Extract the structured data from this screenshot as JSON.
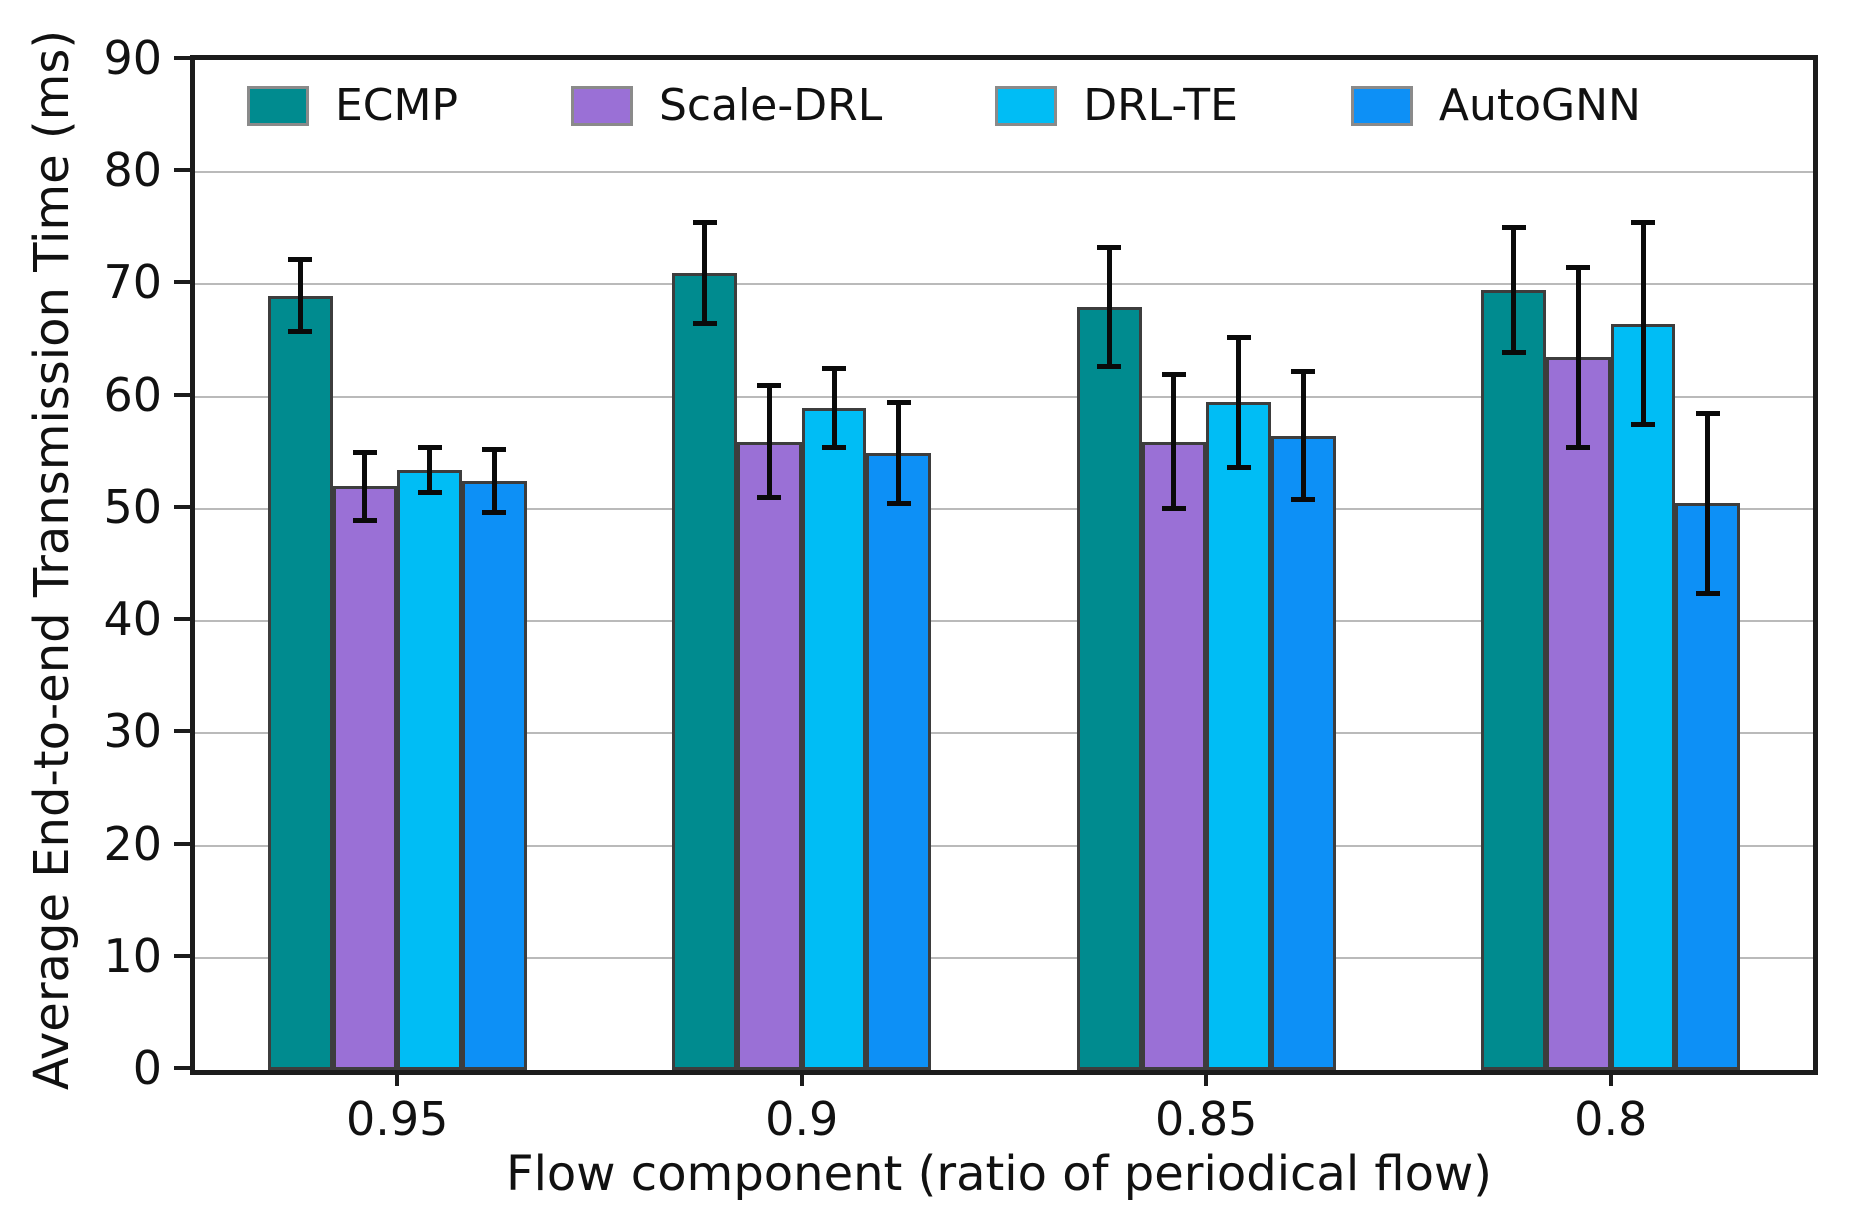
{
  "figure": {
    "background": "#ffffff",
    "text_color": "#111111",
    "grid_color": "#bababa",
    "spine_color": "#1c1c1c",
    "error_bar_color": "#0a0a0a",
    "bar_edge_color": "#3d3d3d"
  },
  "chart_data": {
    "type": "bar",
    "title": "",
    "xlabel": "Flow component (ratio of periodical flow)",
    "ylabel": "Average End-to-end Transmission Time (ms)",
    "categories": [
      "0.95",
      "0.9",
      "0.85",
      "0.8"
    ],
    "ylim": [
      0,
      90
    ],
    "yticks": [
      0,
      10,
      20,
      30,
      40,
      50,
      60,
      70,
      80,
      90
    ],
    "grid": "horizontal",
    "legend_position": "top-inside",
    "error_bars": true,
    "series": [
      {
        "name": "ECMP",
        "color": "#008b8f",
        "values": [
          69.0,
          71.0,
          68.0,
          69.5
        ],
        "errors": [
          3.2,
          4.5,
          5.3,
          5.6
        ]
      },
      {
        "name": "Scale-DRL",
        "color": "#9a70d6",
        "values": [
          52.0,
          56.0,
          56.0,
          63.5
        ],
        "errors": [
          3.0,
          5.0,
          6.0,
          8.0
        ]
      },
      {
        "name": "DRL-TE",
        "color": "#00bdf5",
        "values": [
          53.5,
          59.0,
          59.5,
          66.5
        ],
        "errors": [
          2.0,
          3.5,
          5.8,
          9.0
        ]
      },
      {
        "name": "AutoGNN",
        "color": "#0d90f6",
        "values": [
          52.5,
          55.0,
          56.5,
          50.5
        ],
        "errors": [
          2.8,
          4.5,
          5.7,
          8.0
        ]
      }
    ]
  }
}
